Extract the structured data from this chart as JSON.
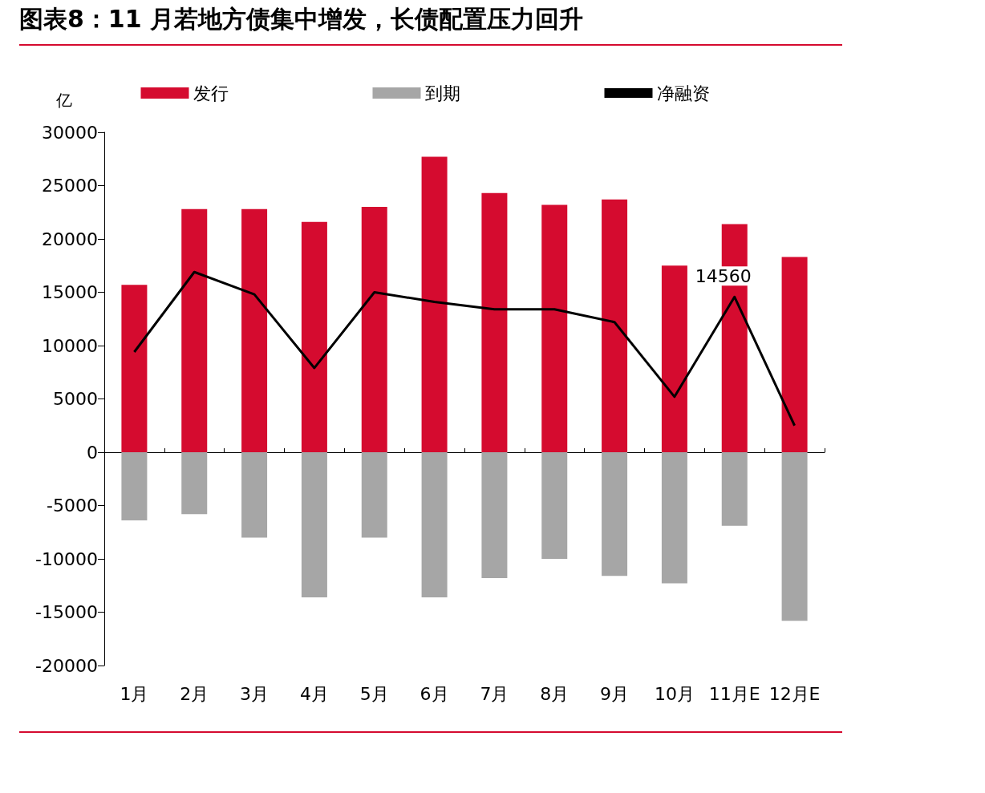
{
  "chart_data": {
    "type": "bar",
    "title": "图表8：11 月若地方债集中增发，长债配置压力回升",
    "ylabel": "亿",
    "categories": [
      "1月",
      "2月",
      "3月",
      "4月",
      "5月",
      "6月",
      "7月",
      "8月",
      "9月",
      "10月",
      "11月E",
      "12月E"
    ],
    "series": [
      {
        "name": "发行",
        "color": "#d50b2f",
        "values": [
          15700,
          22800,
          22800,
          21600,
          23000,
          27700,
          24300,
          23200,
          23700,
          17500,
          21400,
          18300
        ]
      },
      {
        "name": "到期",
        "color": "#a6a6a6",
        "values": [
          -6400,
          -5800,
          -8000,
          -13600,
          -8000,
          -13600,
          -11800,
          -10000,
          -11600,
          -12300,
          -6900,
          -15800
        ]
      },
      {
        "name": "净融资",
        "type": "line",
        "color": "#000000",
        "values": [
          9400,
          16900,
          14800,
          7900,
          15000,
          14100,
          13400,
          13400,
          12200,
          5200,
          14560,
          2500
        ],
        "value_labels": [
          null,
          null,
          null,
          null,
          null,
          null,
          null,
          null,
          null,
          null,
          "14560",
          null
        ]
      }
    ],
    "stacked": true,
    "ylim": [
      -20000,
      30000
    ],
    "yticks": [
      -20000,
      -15000,
      -10000,
      -5000,
      0,
      5000,
      10000,
      15000,
      20000,
      25000,
      30000
    ],
    "legend": "top",
    "marker": "none",
    "line_style": "solid"
  }
}
